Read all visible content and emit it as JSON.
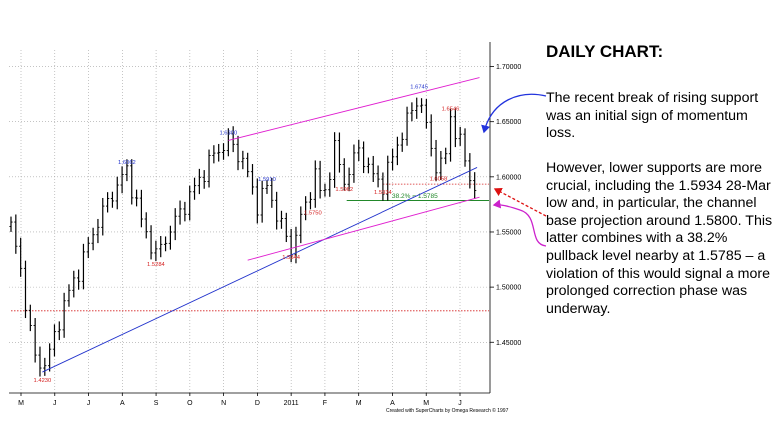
{
  "commentary": {
    "heading": "DAILY CHART:",
    "paragraph1": "The recent break of rising support was an initial sign of momentum loss.",
    "paragraph2": "However, lower supports are more crucial, including the 1.5934 28-Mar low and, in particular, the channel base projection around 1.5800. This latter combines with a 38.2% pullback level nearby at 1.5785 – a violation of this would signal a more prolonged correction phase was underway."
  },
  "chart_data": {
    "type": "ohlc",
    "title": "",
    "ylim": [
      1.404,
      1.715
    ],
    "y_ticks": [
      "1.70000",
      "1.65000",
      "1.60000",
      "1.55000",
      "1.50000",
      "1.45000"
    ],
    "x_ticks": [
      "M",
      "J",
      "J",
      "A",
      "S",
      "O",
      "N",
      "D",
      "2011",
      "F",
      "M",
      "A",
      "M",
      "J"
    ],
    "grid": true,
    "credit": "Created with SuperCharts by Omega Research © 1997",
    "price_path": [
      {
        "t": 0.0,
        "p": 1.555
      },
      {
        "t": 2.0,
        "p": 1.515
      },
      {
        "t": 4.0,
        "p": 1.46
      },
      {
        "t": 5.0,
        "p": 1.435
      },
      {
        "t": 6.5,
        "p": 1.428
      },
      {
        "t": 8.0,
        "p": 1.44
      },
      {
        "t": 11.0,
        "p": 1.485
      },
      {
        "t": 14.0,
        "p": 1.515
      },
      {
        "t": 18.0,
        "p": 1.56
      },
      {
        "t": 21.0,
        "p": 1.585
      },
      {
        "t": 24.0,
        "p": 1.6062
      },
      {
        "t": 27.0,
        "p": 1.56
      },
      {
        "t": 30.0,
        "p": 1.5284
      },
      {
        "t": 34.0,
        "p": 1.56
      },
      {
        "t": 38.0,
        "p": 1.59
      },
      {
        "t": 42.0,
        "p": 1.62
      },
      {
        "t": 45.0,
        "p": 1.633
      },
      {
        "t": 48.0,
        "p": 1.615
      },
      {
        "t": 51.0,
        "p": 1.575
      },
      {
        "t": 53.0,
        "p": 1.591
      },
      {
        "t": 56.0,
        "p": 1.555
      },
      {
        "t": 58.0,
        "p": 1.5344
      },
      {
        "t": 61.0,
        "p": 1.575
      },
      {
        "t": 63.0,
        "p": 1.602
      },
      {
        "t": 64.5,
        "p": 1.578
      },
      {
        "t": 67.0,
        "p": 1.625
      },
      {
        "t": 69.0,
        "p": 1.5962
      },
      {
        "t": 72.0,
        "p": 1.625
      },
      {
        "t": 75.0,
        "p": 1.6
      },
      {
        "t": 77.0,
        "p": 1.5934
      },
      {
        "t": 80.0,
        "p": 1.63
      },
      {
        "t": 83.0,
        "p": 1.66
      },
      {
        "t": 84.5,
        "p": 1.6745
      },
      {
        "t": 87.0,
        "p": 1.625
      },
      {
        "t": 88.5,
        "p": 1.6058
      },
      {
        "t": 90.0,
        "p": 1.62
      },
      {
        "t": 91.0,
        "p": 1.6546
      },
      {
        "t": 93.0,
        "p": 1.63
      },
      {
        "t": 95.0,
        "p": 1.6
      },
      {
        "t": 96.0,
        "p": 1.59
      }
    ],
    "peak_trough_labels": [
      {
        "t": 6.5,
        "p": 1.423,
        "label": "1.4230",
        "color": "#d42020",
        "pos": "below"
      },
      {
        "t": 24.0,
        "p": 1.6062,
        "label": "1.6062",
        "color": "#2233cc",
        "pos": "above"
      },
      {
        "t": 30.0,
        "p": 1.5284,
        "label": "1.5284",
        "color": "#d42020",
        "pos": "below"
      },
      {
        "t": 45.0,
        "p": 1.633,
        "label": "1.6300",
        "color": "#2233cc",
        "pos": "above"
      },
      {
        "t": 53.0,
        "p": 1.591,
        "label": "1.5910",
        "color": "#2233cc",
        "pos": "above"
      },
      {
        "t": 58.0,
        "p": 1.5344,
        "label": "1.5344",
        "color": "#d42020",
        "pos": "below"
      },
      {
        "t": 62.5,
        "p": 1.575,
        "label": "1.5750",
        "color": "#d42020",
        "pos": "below"
      },
      {
        "t": 69.0,
        "p": 1.5962,
        "label": "1.5962",
        "color": "#d42020",
        "pos": "below"
      },
      {
        "t": 77.0,
        "p": 1.5934,
        "label": "1.5934",
        "color": "#d42020",
        "pos": "below"
      },
      {
        "t": 84.5,
        "p": 1.6745,
        "label": "1.6745",
        "color": "#2233cc",
        "pos": "above"
      },
      {
        "t": 88.5,
        "p": 1.6058,
        "label": "1.6058",
        "color": "#d42020",
        "pos": "below"
      },
      {
        "t": 91.0,
        "p": 1.6546,
        "label": "1.6546",
        "color": "#d42020",
        "pos": "above"
      }
    ],
    "trendlines": [
      {
        "name": "rising support",
        "color": "#2233cc",
        "from": {
          "t": 6.5,
          "p": 1.423
        },
        "to": {
          "t": 96.5,
          "p": 1.6085
        }
      },
      {
        "name": "channel top",
        "color": "#e020d0",
        "from": {
          "t": 45.0,
          "p": 1.633
        },
        "to": {
          "t": 97.0,
          "p": 1.69
        }
      },
      {
        "name": "channel base",
        "color": "#e020d0",
        "from": {
          "t": 49.0,
          "p": 1.5244
        },
        "to": {
          "t": 97.0,
          "p": 1.5815
        }
      }
    ],
    "levels": [
      {
        "value": 1.5934,
        "color": "#d42020",
        "style": "dotted",
        "from_t": 77.0
      },
      {
        "value": 1.5785,
        "color": "#22882a",
        "style": "solid",
        "from_t": 69.5,
        "label": "38.2% = 1.5785"
      },
      {
        "value": 1.4785,
        "color": "#d42020",
        "style": "dotted",
        "from_t": 0.0
      }
    ],
    "colors": {
      "bars": "#000000",
      "grid": "#a0a0a0",
      "arrow_blue": "#2233dd",
      "arrow_red": "#dd1111",
      "arrow_magenta": "#cc22cc"
    }
  }
}
